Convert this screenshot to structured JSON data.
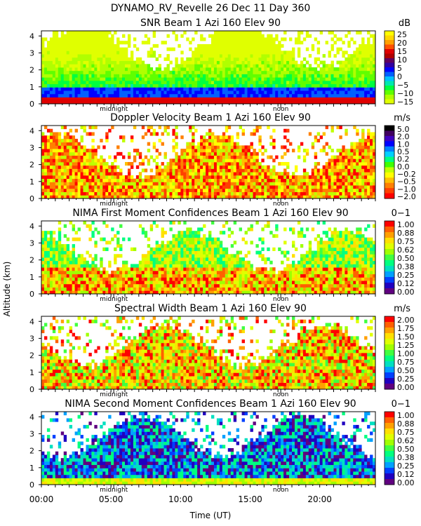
{
  "header": {
    "title_line": "DYNAMO_RV_Revelle   26 Dec 11 Day 360"
  },
  "axes": {
    "ylabel": "Altitude (km)",
    "xlabel": "Time (UT)",
    "x_ticks": [
      "00:00",
      "05:00",
      "10:00",
      "15:00",
      "20:00"
    ],
    "x_tick_hours": [
      0,
      5,
      10,
      15,
      20
    ],
    "xlim_hours": [
      0,
      24
    ],
    "ylim_km": [
      0,
      4.3
    ],
    "y_ticks": [
      "0",
      "1",
      "2",
      "3",
      "4"
    ],
    "y_tick_values": [
      0,
      1,
      2,
      3,
      4
    ],
    "midnight_label": "midnight",
    "midnight_hour": 5.2,
    "noon_label": "noon",
    "noon_hour": 17.2
  },
  "chart_data": [
    {
      "type": "heatmap",
      "title": "SNR Beam 1 Azi 160 Elev 90",
      "units": "dB",
      "colorbar_labels": [
        "25",
        "20",
        "15",
        "10",
        "5",
        "0",
        "−5",
        "−10",
        "−15"
      ],
      "colorbar_values": [
        25,
        20,
        15,
        10,
        5,
        0,
        -5,
        -10,
        -15
      ],
      "colors": [
        "#ffff00",
        "#ffd700",
        "#ffa000",
        "#ff5000",
        "#e00000",
        "#b00000",
        "#600060",
        "#3000a0",
        "#0000ff",
        "#0060ff",
        "#00c0ff",
        "#00e8b0",
        "#00ff40",
        "#60ff00",
        "#b0ff00",
        "#e0ff00"
      ]
    },
    {
      "type": "heatmap",
      "title": "Doppler Velocity Beam 1 Azi 160 Elev 90",
      "units": "m/s",
      "colorbar_labels": [
        "5.0",
        "2.0",
        "1.0",
        "0.5",
        "0.2",
        "0.0",
        "−0.2",
        "−0.5",
        "−1.0",
        "−2.0"
      ],
      "colorbar_values": [
        5.0,
        2.0,
        1.0,
        0.5,
        0.2,
        0.0,
        -0.2,
        -0.5,
        -1.0,
        -2.0
      ],
      "colors": [
        "#000000",
        "#400060",
        "#4000c0",
        "#0000ff",
        "#0080ff",
        "#00d0ff",
        "#00ff80",
        "#40ff00",
        "#c0ff00",
        "#ffff00",
        "#ffc000",
        "#ff8000",
        "#ff4000",
        "#ff0000"
      ]
    },
    {
      "type": "heatmap",
      "title": "NIMA First Moment Confidences Beam 1 Azi 160 Elev 90",
      "units": "0−1",
      "colorbar_labels": [
        "1.00",
        "0.88",
        "0.75",
        "0.62",
        "0.50",
        "0.38",
        "0.25",
        "0.12",
        "0.00"
      ],
      "colorbar_values": [
        1.0,
        0.88,
        0.75,
        0.62,
        0.5,
        0.38,
        0.25,
        0.12,
        0.0
      ],
      "colors": [
        "#ff0000",
        "#ff6000",
        "#ffa000",
        "#ffe000",
        "#e0ff00",
        "#a0ff00",
        "#40ff40",
        "#00ff80",
        "#00e0c0",
        "#00a0ff",
        "#0040ff",
        "#2000c0",
        "#600080"
      ]
    },
    {
      "type": "heatmap",
      "title": "Spectral Width Beam 1 Azi 160 Elev 90",
      "units": "m/s",
      "colorbar_labels": [
        "2.00",
        "1.75",
        "1.50",
        "1.25",
        "1.00",
        "0.75",
        "0.50",
        "0.25",
        "0.00"
      ],
      "colorbar_values": [
        2.0,
        1.75,
        1.5,
        1.25,
        1.0,
        0.75,
        0.5,
        0.25,
        0.0
      ],
      "colors": [
        "#ff0000",
        "#ff6000",
        "#ffa000",
        "#ffe000",
        "#e0ff00",
        "#a0ff00",
        "#40ff40",
        "#00ff80",
        "#00e0c0",
        "#00a0ff",
        "#0040ff",
        "#2000c0",
        "#600080"
      ]
    },
    {
      "type": "heatmap",
      "title": "NIMA Second Moment Confidences Beam 1 Azi 160 Elev 90",
      "units": "0−1",
      "colorbar_labels": [
        "1.00",
        "0.88",
        "0.75",
        "0.62",
        "0.50",
        "0.38",
        "0.25",
        "0.12",
        "0.00"
      ],
      "colorbar_values": [
        1.0,
        0.88,
        0.75,
        0.62,
        0.5,
        0.38,
        0.25,
        0.12,
        0.0
      ],
      "colors": [
        "#ff0000",
        "#ff6000",
        "#ffa000",
        "#ffe000",
        "#e0ff00",
        "#a0ff00",
        "#40ff40",
        "#00ff80",
        "#00e0c0",
        "#00a0ff",
        "#0040ff",
        "#2000c0",
        "#600080"
      ]
    }
  ]
}
